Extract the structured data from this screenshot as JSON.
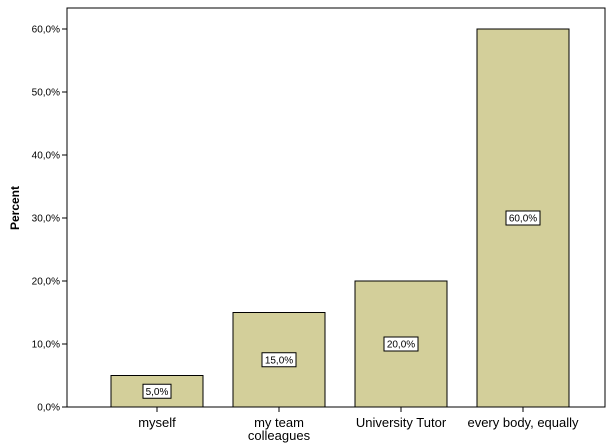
{
  "chart_data": {
    "type": "bar",
    "categories": [
      "myself",
      "my team colleagues",
      "University Tutor",
      "every body, equally"
    ],
    "values": [
      5,
      15,
      20,
      60
    ],
    "data_labels": [
      "5,0%",
      "15,0%",
      "20,0%",
      "60,0%"
    ],
    "title": "",
    "xlabel": "",
    "ylabel": "Percent",
    "ylim": [
      0,
      60
    ],
    "yticks": [
      0,
      10,
      20,
      30,
      40,
      50,
      60
    ],
    "ytick_labels": [
      "0,0%",
      "10,0%",
      "20,0%",
      "30,0%",
      "40,0%",
      "50,0%",
      "60,0%"
    ],
    "grid": false,
    "bar_color": "#d3cf9a",
    "bar_edge_color": "#000000"
  }
}
